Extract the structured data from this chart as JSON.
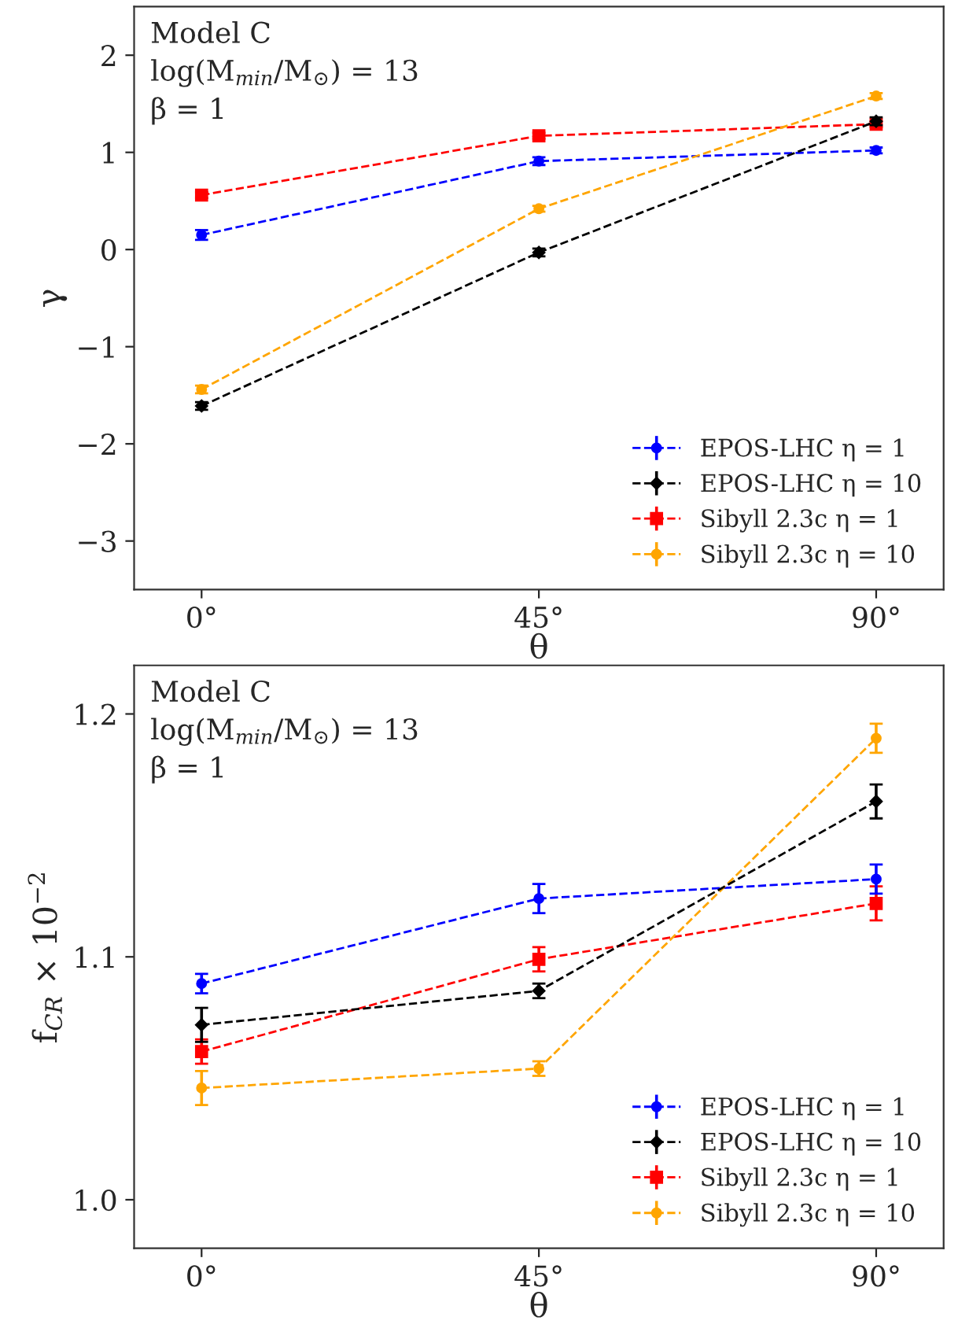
{
  "chart_data": [
    {
      "type": "line",
      "categories": [
        "0°",
        "45°",
        "90°"
      ],
      "xlabel": "θ",
      "ylabel": "γ",
      "ylim": [
        -3.5,
        2.5
      ],
      "yticks": [
        {
          "value": -3,
          "label": "−3"
        },
        {
          "value": -2,
          "label": "−2"
        },
        {
          "value": -1,
          "label": "−1"
        },
        0,
        1,
        2
      ],
      "annotations": [
        "Model C",
        "log(M$_{min}$/M$_{⊙}$) = 13",
        "β = 1"
      ],
      "legend": "lower right",
      "line_style": "dashed",
      "grid": false,
      "series": [
        {
          "name": "EPOS-LHC η = 1",
          "color": "#0000ff",
          "marker": "circle",
          "values": [
            0.15,
            0.91,
            1.02
          ],
          "errors": [
            0.05,
            0.04,
            0.03
          ]
        },
        {
          "name": "EPOS-LHC η = 10",
          "color": "#000000",
          "marker": "diamond",
          "values": [
            -1.61,
            -0.03,
            1.32
          ],
          "errors": [
            0.04,
            0.04,
            0.04
          ]
        },
        {
          "name": "Sibyll 2.3c η = 1",
          "color": "#ff0000",
          "marker": "square",
          "values": [
            0.56,
            1.17,
            1.29
          ],
          "errors": [
            0.03,
            0.03,
            0.03
          ]
        },
        {
          "name": "Sibyll 2.3c η = 10",
          "color": "#ffa500",
          "marker": "circle",
          "values": [
            -1.44,
            0.42,
            1.58
          ],
          "errors": [
            0.04,
            0.03,
            0.03
          ]
        }
      ]
    },
    {
      "type": "line",
      "categories": [
        "0°",
        "45°",
        "90°"
      ],
      "xlabel": "θ",
      "ylabel": "f$_{CR}$ × 10$^{−2}$",
      "ylim": [
        0.98,
        1.22
      ],
      "yticks": [
        {
          "value": 1.0,
          "label": "1.0"
        },
        1.1,
        1.2
      ],
      "annotations": [
        "Model C",
        "log(M$_{min}$/M$_{⊙}$) = 13",
        "β = 1"
      ],
      "legend": "lower right",
      "line_style": "dashed",
      "grid": false,
      "series": [
        {
          "name": "EPOS-LHC η = 1",
          "color": "#0000ff",
          "marker": "circle",
          "values": [
            1.089,
            1.124,
            1.132
          ],
          "errors": [
            0.004,
            0.006,
            0.006
          ]
        },
        {
          "name": "EPOS-LHC η = 10",
          "color": "#000000",
          "marker": "diamond",
          "values": [
            1.072,
            1.086,
            1.164
          ],
          "errors": [
            0.007,
            0.003,
            0.007
          ]
        },
        {
          "name": "Sibyll 2.3c η = 1",
          "color": "#ff0000",
          "marker": "square",
          "values": [
            1.061,
            1.099,
            1.122
          ],
          "errors": [
            0.005,
            0.005,
            0.007
          ]
        },
        {
          "name": "Sibyll 2.3c η = 10",
          "color": "#ffa500",
          "marker": "circle",
          "values": [
            1.046,
            1.054,
            1.19
          ],
          "errors": [
            0.007,
            0.003,
            0.006
          ]
        }
      ]
    }
  ]
}
